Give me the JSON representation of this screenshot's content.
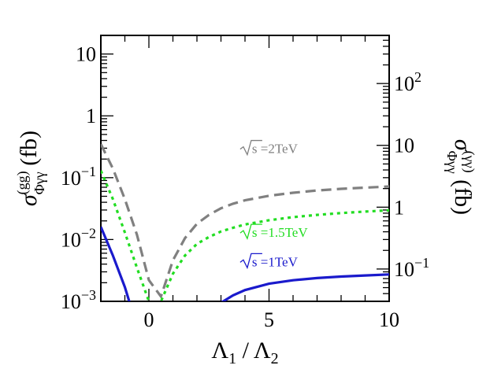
{
  "chart_data": {
    "type": "line",
    "xlabel": "Λ₁ / Λ₂",
    "ylabel": "σ̄(gg)Φγγ (fb)",
    "ylabel_right": "σ̄(γγ)Φγγ (fb)",
    "xlim": [
      -2,
      10
    ],
    "ylim": [
      0.001,
      20
    ],
    "y_scale": "log",
    "ylim_right": [
      0.03,
      600
    ],
    "y_scale_right": "log",
    "x_ticks": [
      0,
      5,
      10
    ],
    "y_tick_labels": [
      {
        "value": 0.001,
        "base": "10",
        "exp": "−3"
      },
      {
        "value": 0.01,
        "base": "10",
        "exp": "−2"
      },
      {
        "value": 0.1,
        "base": "10",
        "exp": "−1"
      },
      {
        "value": 1,
        "base": "1",
        "exp": ""
      },
      {
        "value": 10,
        "base": "10",
        "exp": ""
      }
    ],
    "y_right_tick_labels": [
      {
        "value": 0.1,
        "base": "10",
        "exp": "−1"
      },
      {
        "value": 1,
        "base": "1",
        "exp": ""
      },
      {
        "value": 10,
        "base": "10",
        "exp": ""
      },
      {
        "value": 100,
        "base": "10",
        "exp": "2"
      }
    ],
    "grid": false,
    "series": [
      {
        "name": "√s =2TeV",
        "color": "#808080",
        "style": "dashed",
        "label_x": 3.8,
        "label_y": 0.25,
        "x": [
          -2,
          -1.5,
          -1,
          -0.5,
          0,
          0.5,
          1,
          1.5,
          2,
          2.5,
          3,
          3.5,
          4,
          5,
          6,
          7,
          8,
          9,
          10
        ],
        "y": [
          0.35,
          0.14,
          0.045,
          0.012,
          0.0022,
          0.0012,
          0.0046,
          0.0105,
          0.018,
          0.025,
          0.032,
          0.038,
          0.043,
          0.051,
          0.057,
          0.062,
          0.066,
          0.069,
          0.072
        ]
      },
      {
        "name": "√s =1.5TeV",
        "color": "#22dd22",
        "style": "dotted",
        "label_x": 3.8,
        "label_y": 0.011,
        "x": [
          -2,
          -1.5,
          -1,
          -0.5,
          0,
          0.3,
          0.5,
          1,
          1.5,
          2,
          2.5,
          3,
          3.5,
          4,
          5,
          6,
          7,
          8,
          9,
          10
        ],
        "y": [
          0.13,
          0.045,
          0.013,
          0.0035,
          0.001,
          0.0007,
          0.001,
          0.0028,
          0.0055,
          0.0085,
          0.011,
          0.0135,
          0.0155,
          0.0175,
          0.0205,
          0.023,
          0.025,
          0.0268,
          0.0283,
          0.0297
        ]
      },
      {
        "name": "√s =1TeV",
        "color": "#1a1acc",
        "style": "solid",
        "label_x": 3.8,
        "label_y": 0.0037,
        "x": [
          -2,
          -1.5,
          -1,
          -0.8,
          3,
          3.5,
          4,
          5,
          6,
          7,
          8,
          9,
          10
        ],
        "y": [
          0.016,
          0.0055,
          0.0017,
          0.00095,
          0.00095,
          0.00125,
          0.00152,
          0.00193,
          0.00219,
          0.00238,
          0.00252,
          0.00262,
          0.00272
        ]
      }
    ]
  }
}
